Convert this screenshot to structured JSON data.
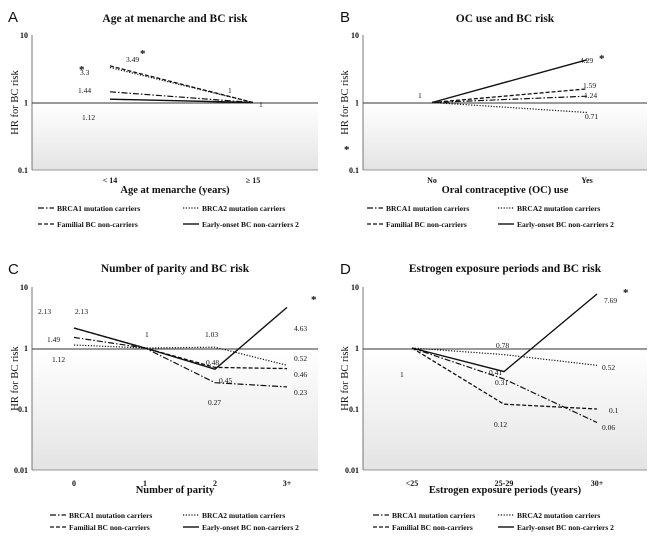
{
  "chart_data": [
    {
      "letter": "A",
      "type": "line",
      "title": "Age at menarche and BC risk",
      "xlabel": "Age at menarche (years)",
      "ylabel": "HR for BC risk",
      "yscale": "log",
      "ylim": [
        0.1,
        10
      ],
      "yticks": [
        "0.1",
        "1",
        "10"
      ],
      "categories": [
        "< 14",
        "≥ 15"
      ],
      "series": [
        {
          "name": "BRCA1 mutation carriers",
          "values": [
            1.44,
            1
          ]
        },
        {
          "name": "BRCA2 mutation carriers",
          "values": [
            3.3,
            1
          ]
        },
        {
          "name": "Familial BC non-carriers",
          "values": [
            3.49,
            1
          ]
        },
        {
          "name": "Early-onset BC non-carriers 2",
          "values": [
            1.12,
            1
          ]
        }
      ],
      "labels": [
        "3.3",
        "3.49",
        "1.44",
        "1.12",
        "1",
        "1"
      ],
      "stars": [
        "*",
        "*"
      ]
    },
    {
      "letter": "B",
      "type": "line",
      "title": "OC use and BC risk",
      "xlabel": "Oral contraceptive (OC) use",
      "ylabel": "HR for BC risk",
      "yscale": "log",
      "ylim": [
        0.1,
        10
      ],
      "yticks": [
        "0.1",
        "1",
        "10"
      ],
      "categories": [
        "No",
        "Yes"
      ],
      "series": [
        {
          "name": "BRCA1 mutation carriers",
          "values": [
            1,
            1.24
          ]
        },
        {
          "name": "BRCA2 mutation carriers",
          "values": [
            1,
            0.71
          ]
        },
        {
          "name": "Familial BC non-carriers",
          "values": [
            1,
            1.59
          ]
        },
        {
          "name": "Early-onset BC non-carriers 2",
          "values": [
            1,
            4.29
          ]
        }
      ],
      "labels": [
        "1",
        "4.29",
        "1.59",
        "1.24",
        "0.71"
      ],
      "stars": [
        "*",
        "*"
      ]
    },
    {
      "letter": "C",
      "type": "line",
      "title": "Number of parity and BC risk",
      "xlabel": "Number of parity",
      "ylabel": "HR for BC risk",
      "yscale": "log",
      "ylim": [
        0.01,
        10
      ],
      "yticks": [
        "0.01",
        "0.1",
        "1",
        "10"
      ],
      "categories": [
        "0",
        "1",
        "2",
        "3+"
      ],
      "series": [
        {
          "name": "BRCA1 mutation carriers",
          "values": [
            1.49,
            1,
            0.27,
            0.23
          ]
        },
        {
          "name": "BRCA2 mutation carriers",
          "values": [
            1.12,
            1,
            1.03,
            0.52
          ]
        },
        {
          "name": "Familial BC non-carriers",
          "values": [
            2.13,
            1,
            0.48,
            0.46
          ]
        },
        {
          "name": "Early-onset BC non-carriers 2",
          "values": [
            2.13,
            1,
            0.45,
            4.63
          ]
        }
      ],
      "labels": [
        "2.13",
        "2.13",
        "1.49",
        "1.12",
        "1",
        "1.03",
        "0.48",
        "0.45",
        "0.27",
        "4.63",
        "0.52",
        "0.46",
        "0.23"
      ],
      "stars": [
        "*"
      ]
    },
    {
      "letter": "D",
      "type": "line",
      "title": "Estrogen exposure periods and BC risk",
      "xlabel": "Estrogen exposure periods (years)",
      "ylabel": "HR for BC risk",
      "yscale": "log",
      "ylim": [
        0.01,
        10
      ],
      "yticks": [
        "0.01",
        "0.1",
        "1",
        "10"
      ],
      "categories": [
        "<25",
        "25-29",
        "30+"
      ],
      "series": [
        {
          "name": "BRCA1 mutation carriers",
          "values": [
            1,
            0.31,
            0.06
          ]
        },
        {
          "name": "BRCA2 mutation carriers",
          "values": [
            1,
            0.78,
            0.52
          ]
        },
        {
          "name": "Familial BC non-carriers",
          "values": [
            1,
            0.12,
            0.1
          ]
        },
        {
          "name": "Early-onset BC non-carriers 2",
          "values": [
            1,
            0.41,
            7.69
          ]
        }
      ],
      "labels": [
        "1",
        "0.78",
        "0.41",
        "0.31",
        "0.12",
        "7.69",
        "0.52",
        "0.1",
        "0.06"
      ],
      "stars": [
        "*"
      ]
    }
  ],
  "legend": [
    "BRCA1 mutation carriers",
    "BRCA2 mutation carriers",
    "Familial BC non-carriers",
    "Early-onset BC non-carriers 2"
  ]
}
